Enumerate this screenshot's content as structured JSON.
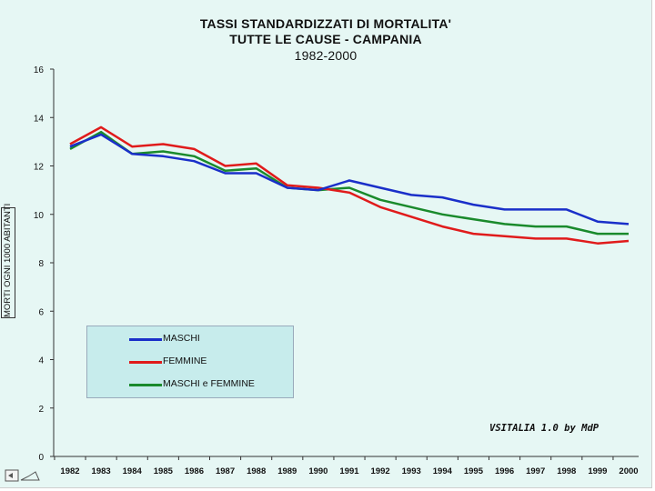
{
  "chart_data": {
    "type": "line",
    "title": [
      "TASSI STANDARDIZZATI DI MORTALITA'",
      "TUTTE LE CAUSE - CAMPANIA",
      "1982-2000"
    ],
    "xlabel": "",
    "ylabel": "MORTI OGNI 1000 ABITANTI",
    "ylim": [
      0,
      16
    ],
    "yticks": [
      0,
      2,
      4,
      6,
      8,
      10,
      12,
      14,
      16
    ],
    "categories": [
      "1982",
      "1983",
      "1984",
      "1985",
      "1986",
      "1987",
      "1988",
      "1989",
      "1990",
      "1991",
      "1992",
      "1993",
      "1994",
      "1995",
      "1996",
      "1997",
      "1998",
      "1999",
      "2000"
    ],
    "series": [
      {
        "name": "MASCHI",
        "color": "#1a2fc9",
        "values": [
          12.8,
          13.3,
          12.5,
          12.4,
          12.2,
          11.7,
          11.7,
          11.1,
          11.0,
          11.4,
          11.1,
          10.8,
          10.7,
          10.4,
          10.2,
          10.2,
          10.2,
          9.7,
          9.6
        ]
      },
      {
        "name": "FEMMINE",
        "color": "#e01b1b",
        "values": [
          12.9,
          13.6,
          12.8,
          12.9,
          12.7,
          12.0,
          12.1,
          11.2,
          11.1,
          10.9,
          10.3,
          9.9,
          9.5,
          9.2,
          9.1,
          9.0,
          9.0,
          8.8,
          8.9
        ]
      },
      {
        "name": "MASCHI e FEMMINE",
        "color": "#1a8a2c",
        "values": [
          12.7,
          13.4,
          12.5,
          12.6,
          12.4,
          11.8,
          11.9,
          11.1,
          11.0,
          11.1,
          10.6,
          10.3,
          10.0,
          9.8,
          9.6,
          9.5,
          9.5,
          9.2,
          9.2
        ]
      }
    ],
    "legend": "lower-left",
    "grid": false,
    "annotation": "VSITALIA 1.0 by MdP"
  }
}
